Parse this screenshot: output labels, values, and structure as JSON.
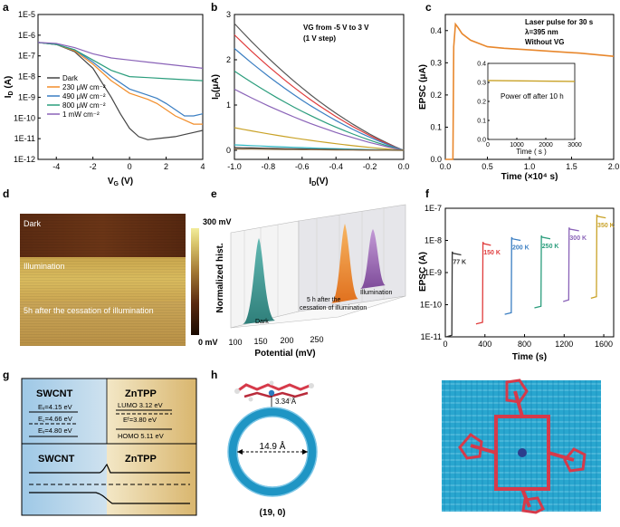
{
  "panel_labels": [
    "a",
    "b",
    "c",
    "d",
    "e",
    "f",
    "g",
    "h"
  ],
  "chart_data": [
    {
      "id": "a",
      "type": "line",
      "xlabel": "VG (V)",
      "ylabel": "ID (A)",
      "xlim": [
        -5,
        4
      ],
      "ylim_log10": [
        -12,
        -5
      ],
      "xticks": [
        "-4",
        "-2",
        "0",
        "2",
        "4"
      ],
      "yticks": [
        "1E-12",
        "1E-11",
        "1E-10",
        "1E-9",
        "1E-8",
        "1E-7",
        "1E-6",
        "1E-5"
      ],
      "legend": [
        "Dark",
        "230 μW cm⁻²",
        "490 μW cm⁻²",
        "800 μW cm⁻²",
        "1 mW cm⁻²"
      ],
      "series": [
        {
          "name": "Dark",
          "color": "#444444",
          "x": [
            -5,
            -4,
            -3,
            -2,
            -1.5,
            -1,
            -0.5,
            0,
            0.5,
            1,
            1.5,
            2,
            2.5,
            3,
            3.5,
            4
          ],
          "log_y": [
            -6.35,
            -6.45,
            -6.8,
            -7.6,
            -8.3,
            -9.0,
            -9.8,
            -10.5,
            -10.9,
            -11.05,
            -11.0,
            -10.95,
            -10.9,
            -10.8,
            -10.7,
            -10.6
          ]
        },
        {
          "name": "230 μW cm⁻²",
          "color": "#f28e2b",
          "x": [
            -5,
            -4,
            -3,
            -2,
            -1,
            0,
            1,
            1.5,
            2,
            2.5,
            3,
            3.5,
            4
          ],
          "log_y": [
            -6.35,
            -6.45,
            -6.75,
            -7.4,
            -8.2,
            -8.8,
            -9.1,
            -9.3,
            -9.6,
            -9.9,
            -10.1,
            -10.3,
            -10.3
          ]
        },
        {
          "name": "490 μW cm⁻²",
          "color": "#3a7ec2",
          "x": [
            -5,
            -4,
            -3,
            -2,
            -1,
            0,
            1,
            1.5,
            2,
            2.5,
            3,
            3.5,
            4
          ],
          "log_y": [
            -6.35,
            -6.45,
            -6.7,
            -7.3,
            -8.0,
            -8.6,
            -8.9,
            -9.05,
            -9.3,
            -9.6,
            -9.9,
            -9.9,
            -9.8
          ]
        },
        {
          "name": "800 μW cm⁻²",
          "color": "#2a9d7c",
          "x": [
            -5,
            -4,
            -3,
            -2,
            -1,
            0,
            1,
            2,
            3,
            4
          ],
          "log_y": [
            -6.35,
            -6.45,
            -6.7,
            -7.2,
            -7.7,
            -8.0,
            -8.05,
            -8.1,
            -8.15,
            -8.2
          ]
        },
        {
          "name": "1 mW cm⁻²",
          "color": "#8a63b8",
          "x": [
            -5,
            -4,
            -3,
            -2,
            -1,
            0,
            1,
            2,
            3,
            4
          ],
          "log_y": [
            -6.35,
            -6.4,
            -6.6,
            -6.9,
            -7.1,
            -7.2,
            -7.3,
            -7.4,
            -7.5,
            -7.6
          ]
        }
      ]
    },
    {
      "id": "b",
      "type": "line",
      "xlabel": "ID (V)",
      "ylabel": "ID (μA)",
      "xlim": [
        -1.0,
        0.0
      ],
      "ylim": [
        -0.2,
        3.0
      ],
      "xticks": [
        "-1.0",
        "-0.8",
        "-0.6",
        "-0.4",
        "-0.2",
        "0.0"
      ],
      "yticks": [
        "0",
        "1",
        "2",
        "3"
      ],
      "annotation": [
        "VG from -5 V to 3 V",
        "(1 V step)"
      ],
      "series": [
        {
          "name": "VG = -5 V",
          "color": "#555555",
          "y_at_minus1": 2.8
        },
        {
          "name": "VG = -4 V",
          "color": "#e03b3b",
          "y_at_minus1": 2.55
        },
        {
          "name": "VG = -3 V",
          "color": "#3a7ec2",
          "y_at_minus1": 2.25
        },
        {
          "name": "VG = -2 V",
          "color": "#2a9d7c",
          "y_at_minus1": 1.75
        },
        {
          "name": "VG = -1 V",
          "color": "#8a63b8",
          "y_at_minus1": 1.35
        },
        {
          "name": "VG = 0 V",
          "color": "#c9a227",
          "y_at_minus1": 0.5
        },
        {
          "name": "VG = 1 V",
          "color": "#2fb8c4",
          "y_at_minus1": 0.12
        },
        {
          "name": "VG = 2 V",
          "color": "#333333",
          "y_at_minus1": 0.06
        },
        {
          "name": "VG = 3 V",
          "color": "#8c6d46",
          "y_at_minus1": 0.03
        }
      ]
    },
    {
      "id": "c",
      "type": "line",
      "xlabel": "Time (×10⁴ s)",
      "ylabel": "EPSC (μA)",
      "xlim": [
        0,
        2.0
      ],
      "ylim": [
        0,
        0.45
      ],
      "xticks": [
        "0.0",
        "0.5",
        "1.0",
        "1.5",
        "2.0"
      ],
      "yticks": [
        "0.0",
        "0.1",
        "0.2",
        "0.3",
        "0.4"
      ],
      "annotation": [
        "Laser pulse for 30 s",
        "λ=395 nm",
        "Without VG"
      ],
      "series": [
        {
          "name": "EPSC",
          "color": "#e8872c",
          "x": [
            0,
            0.09,
            0.1,
            0.12,
            0.15,
            0.2,
            0.3,
            0.5,
            0.7,
            1.0,
            1.3,
            1.6,
            1.8,
            2.0
          ],
          "y": [
            0,
            0,
            0.35,
            0.42,
            0.41,
            0.39,
            0.37,
            0.35,
            0.345,
            0.34,
            0.335,
            0.33,
            0.325,
            0.32
          ]
        }
      ],
      "inset": {
        "type": "line",
        "label": "Power off after 10 h",
        "xlim": [
          0,
          3000
        ],
        "ylim": [
          0,
          0.4
        ],
        "xticks": [
          "0",
          "1000",
          "2000",
          "3000"
        ],
        "yticks": [
          "0.0",
          "0.1",
          "0.2",
          "0.3",
          "0.4"
        ],
        "xlabel": "Time ( s )",
        "series": [
          {
            "name": "after power off",
            "color": "#c9a227",
            "x": [
              0,
              3000
            ],
            "y": [
              0.31,
              0.305
            ]
          }
        ]
      }
    },
    {
      "id": "d",
      "type": "heatmap",
      "regions": [
        "Dark",
        "Illumination",
        "5h after the cessation of illumination"
      ],
      "colorbar": {
        "max": "300 mV",
        "min": "0 mV"
      }
    },
    {
      "id": "e",
      "type": "area",
      "xlabel": "Potential (mV)",
      "ylabel": "Normalized hist.",
      "xticks": [
        "100",
        "150",
        "200",
        "250"
      ],
      "series": [
        {
          "name": "Dark",
          "color": "#4aa8a0",
          "peak_mV": 130
        },
        {
          "name": "5 h after the cessation of illumination",
          "color": "#f0922e",
          "peak_mV": 200
        },
        {
          "name": "Illumination",
          "color": "#9b63b5",
          "peak_mV": 215
        }
      ]
    },
    {
      "id": "f",
      "type": "line",
      "xlabel": "Time (s)",
      "ylabel": "EPSC (A)",
      "xlim": [
        0,
        1700
      ],
      "ylim_log10": [
        -11,
        -7
      ],
      "xticks": [
        "0",
        "400",
        "800",
        "1200",
        "1600"
      ],
      "yticks": [
        "1E-11",
        "1E-10",
        "1E-9",
        "1E-8",
        "1E-7"
      ],
      "series": [
        {
          "name": "77 K",
          "color": "#333333",
          "x_start": 10,
          "x_jump": 70,
          "x_end": 160,
          "log_low": -11.0,
          "log_high": -8.4
        },
        {
          "name": "150 K",
          "color": "#e03b3b",
          "x_start": 310,
          "x_jump": 380,
          "x_end": 460,
          "log_low": -10.6,
          "log_high": -8.1
        },
        {
          "name": "200 K",
          "color": "#3a7ec2",
          "x_start": 600,
          "x_jump": 670,
          "x_end": 760,
          "log_low": -10.3,
          "log_high": -7.95
        },
        {
          "name": "250 K",
          "color": "#2a9d7c",
          "x_start": 900,
          "x_jump": 970,
          "x_end": 1060,
          "log_low": -10.1,
          "log_high": -7.9
        },
        {
          "name": "300 K",
          "color": "#8a63b8",
          "x_start": 1190,
          "x_jump": 1250,
          "x_end": 1350,
          "log_low": -9.9,
          "log_high": -7.65
        },
        {
          "name": "350 K",
          "color": "#c9a227",
          "x_start": 1470,
          "x_jump": 1530,
          "x_end": 1620,
          "log_low": -9.8,
          "log_high": -7.25
        }
      ]
    }
  ],
  "panel_g": {
    "left_title": "SWCNT",
    "right_title": "ZnTPP",
    "left_levels": [
      "Eᵥ=4.15 eV",
      "E꜀=4.66 eV",
      "Eᵥ=4.80 eV"
    ],
    "right_levels": [
      "LUMO 3.12 eV",
      "Eᶠ=3.80 eV",
      "HOMO 5.11 eV"
    ],
    "bottom_left": "SWCNT",
    "bottom_right": "ZnTPP"
  },
  "panel_h": {
    "distance": "3.34 Å",
    "diameter": "14.9 Å",
    "chirality": "(19, 0)"
  },
  "colors": {
    "panel_g_left": "#7fb3dc",
    "panel_g_right": "#e3c98a",
    "tube": "#1f95c4",
    "molecule": "#d63a4a"
  }
}
